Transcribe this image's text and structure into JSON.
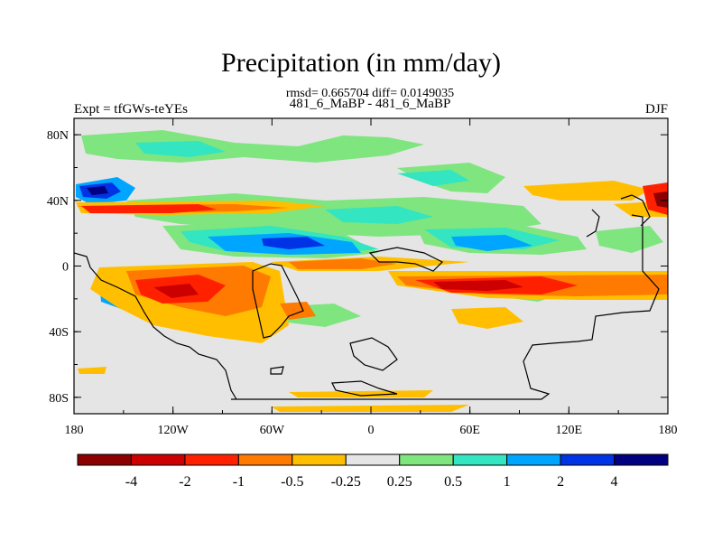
{
  "chart_data": {
    "type": "heatmap",
    "title": "Precipitation (in mm/day)",
    "subtitle": "rmsd= 0.665704 diff= 0.0149035",
    "center_string": "481_6_MaBP - 481_6_MaBP",
    "left_string": "Expt = tfGWs-teYEs",
    "right_string": "DJF",
    "x_ticks": [
      "180",
      "120W",
      "60W",
      "0",
      "60E",
      "120E",
      "180"
    ],
    "y_ticks": [
      "80N",
      "40N",
      "0",
      "40S",
      "80S"
    ],
    "xlim": [
      -180,
      180
    ],
    "ylim": [
      -90,
      90
    ],
    "colorbar": {
      "levels": [
        "-4",
        "-2",
        "-1",
        "-0.5",
        "-0.25",
        "0.25",
        "0.5",
        "1",
        "2",
        "4"
      ],
      "colors": [
        "#8b0000",
        "#cc0000",
        "#ff2000",
        "#ff7a00",
        "#ffbf00",
        "#e5e5e5",
        "#7fe57f",
        "#33e5c0",
        "#00a5ff",
        "#0033e5",
        "#000080"
      ]
    }
  }
}
